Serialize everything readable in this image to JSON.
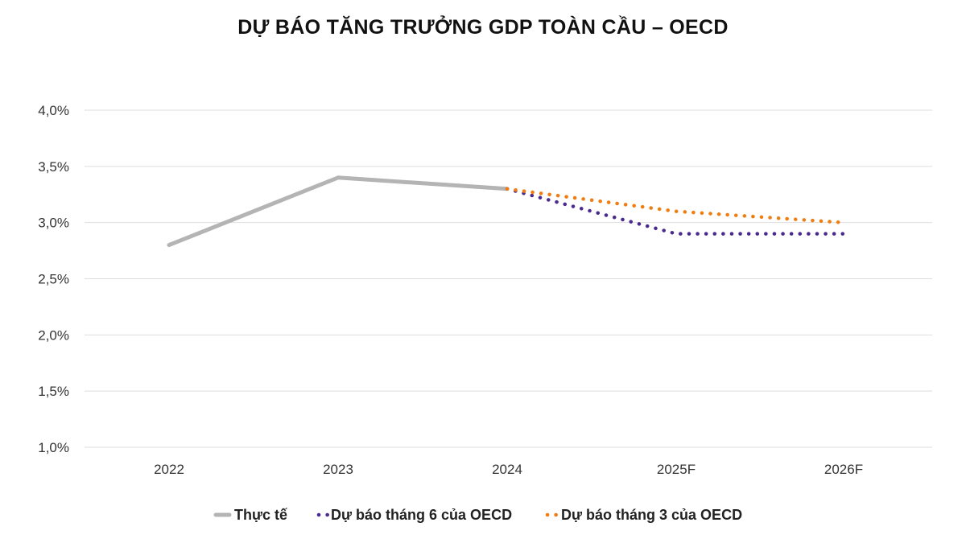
{
  "chart_data": {
    "type": "line",
    "title": "DỰ BÁO TĂNG TRƯỞNG GDP TOÀN CẦU – OECD",
    "categories": [
      "2022",
      "2023",
      "2024",
      "2025F",
      "2026F"
    ],
    "ylim": [
      0.01,
      0.04
    ],
    "y_ticks": [
      "1,0%",
      "1,5%",
      "2,0%",
      "2,5%",
      "3,0%",
      "3,5%",
      "4,0%"
    ],
    "y_tick_values": [
      0.01,
      0.015,
      0.02,
      0.025,
      0.03,
      0.035,
      0.04
    ],
    "grid": true,
    "legend_position": "bottom",
    "series": [
      {
        "name": "Thực tế",
        "color": "#b4b4b4",
        "style": "solid",
        "values": [
          0.028,
          0.034,
          0.033,
          null,
          null
        ]
      },
      {
        "name": "Dự báo tháng 6 của OECD",
        "color": "#4b2a8f",
        "style": "dotted",
        "values": [
          null,
          null,
          0.033,
          0.029,
          0.029
        ]
      },
      {
        "name": "Dự báo tháng 3 của OECD",
        "color": "#f07d12",
        "style": "dotted",
        "values": [
          null,
          null,
          0.033,
          0.031,
          0.03
        ]
      }
    ]
  }
}
